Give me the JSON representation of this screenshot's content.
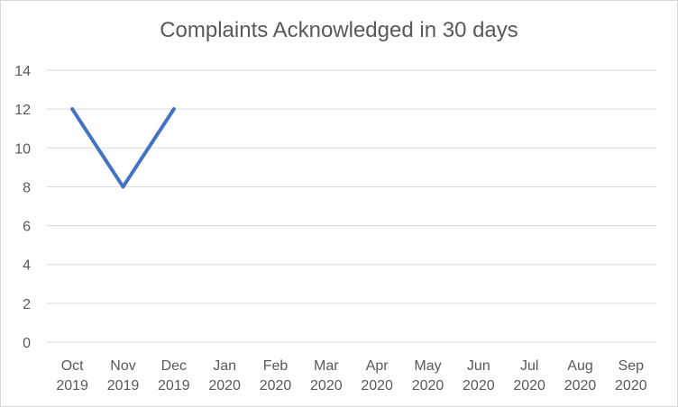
{
  "chart_data": {
    "type": "line",
    "title": "Complaints Acknowledged in 30 days",
    "categories": [
      [
        "Oct",
        "2019"
      ],
      [
        "Nov",
        "2019"
      ],
      [
        "Dec",
        "2019"
      ],
      [
        "Jan",
        "2020"
      ],
      [
        "Feb",
        "2020"
      ],
      [
        "Mar",
        "2020"
      ],
      [
        "Apr",
        "2020"
      ],
      [
        "May",
        "2020"
      ],
      [
        "Jun",
        "2020"
      ],
      [
        "Jul",
        "2020"
      ],
      [
        "Aug",
        "2020"
      ],
      [
        "Sep",
        "2020"
      ]
    ],
    "series": [
      {
        "values": [
          12,
          8,
          12,
          null,
          null,
          null,
          null,
          null,
          null,
          null,
          null,
          null
        ],
        "color": "#4472c4"
      }
    ],
    "ylim": [
      0,
      14
    ],
    "yticks": [
      0,
      2,
      4,
      6,
      8,
      10,
      12,
      14
    ],
    "grid": true,
    "legend": "none",
    "gridColor": "#d9d9d9",
    "textColor": "#595959"
  }
}
